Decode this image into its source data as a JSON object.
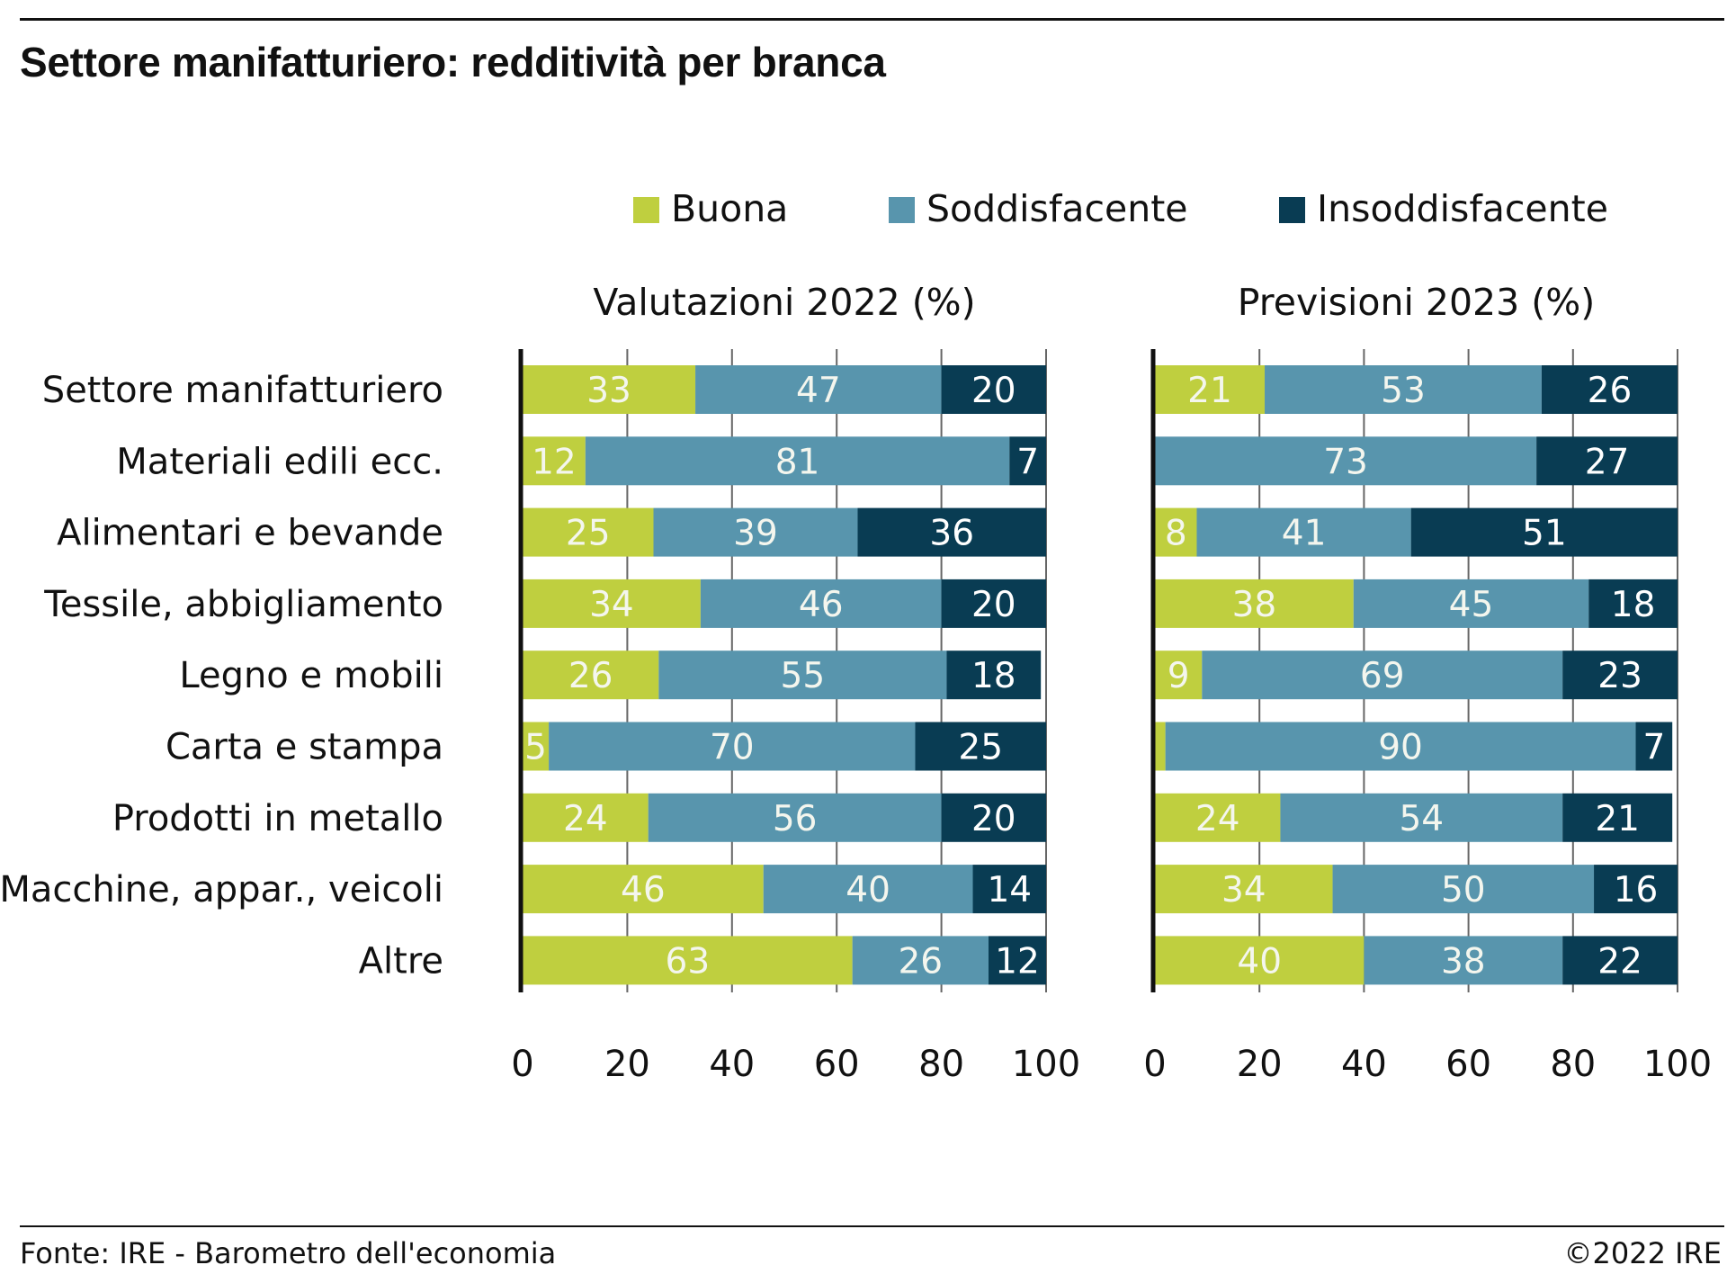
{
  "title": "Settore manifatturiero: redditività per branca",
  "footer": {
    "source": "Fonte: IRE - Barometro dell'economia",
    "copyright": "©2022 IRE"
  },
  "chart_data": {
    "type": "bar",
    "orientation": "horizontal",
    "stacked": true,
    "legend_placement": "top",
    "categories": [
      "Settore manifatturiero",
      "Materiali edili ecc.",
      "Alimentari e bevande",
      "Tessile, abbigliamento",
      "Legno e mobili",
      "Carta e stampa",
      "Prodotti in metallo",
      "Macchine, appar., veicoli",
      "Altre"
    ],
    "legend": [
      {
        "name": "Buona",
        "color": "#bfcf3f"
      },
      {
        "name": "Soddisfacente",
        "color": "#5895ad"
      },
      {
        "name": "Insoddisfacente",
        "color": "#093c53"
      }
    ],
    "panels": [
      {
        "title": "Valutazioni 2022 (%)",
        "xlim": [
          0,
          100
        ],
        "ticks": [
          0,
          20,
          40,
          60,
          80,
          100
        ],
        "series": [
          {
            "name": "Buona",
            "values": [
              33,
              12,
              25,
              34,
              26,
              5,
              24,
              46,
              63
            ]
          },
          {
            "name": "Soddisfacente",
            "values": [
              47,
              81,
              39,
              46,
              55,
              70,
              56,
              40,
              26
            ]
          },
          {
            "name": "Insoddisfacente",
            "values": [
              20,
              7,
              36,
              20,
              18,
              25,
              20,
              14,
              12
            ]
          }
        ],
        "labels": [
          [
            "33",
            "47",
            "20"
          ],
          [
            "12",
            "81",
            "7"
          ],
          [
            "25",
            "39",
            "36"
          ],
          [
            "34",
            "46",
            "20"
          ],
          [
            "26",
            "55",
            "18"
          ],
          [
            "5",
            "70",
            "25"
          ],
          [
            "24",
            "56",
            "20"
          ],
          [
            "46",
            "40",
            "14"
          ],
          [
            "63",
            "26",
            "12"
          ]
        ]
      },
      {
        "title": "Previsioni 2023 (%)",
        "xlim": [
          0,
          100
        ],
        "ticks": [
          0,
          20,
          40,
          60,
          80,
          100
        ],
        "series": [
          {
            "name": "Buona",
            "values": [
              21,
              0,
              8,
              38,
              9,
              2,
              24,
              34,
              40
            ]
          },
          {
            "name": "Soddisfacente",
            "values": [
              53,
              73,
              41,
              45,
              69,
              90,
              54,
              50,
              38
            ]
          },
          {
            "name": "Insoddisfacente",
            "values": [
              26,
              27,
              51,
              18,
              23,
              7,
              21,
              16,
              22
            ]
          }
        ],
        "labels": [
          [
            "21",
            "53",
            "26"
          ],
          [
            "",
            "73",
            "27"
          ],
          [
            "8",
            "41",
            "51"
          ],
          [
            "38",
            "45",
            "18"
          ],
          [
            "9",
            "69",
            "23"
          ],
          [
            "",
            "90",
            "7"
          ],
          [
            "24",
            "54",
            "21"
          ],
          [
            "34",
            "50",
            "16"
          ],
          [
            "40",
            "38",
            "22"
          ]
        ]
      }
    ]
  }
}
